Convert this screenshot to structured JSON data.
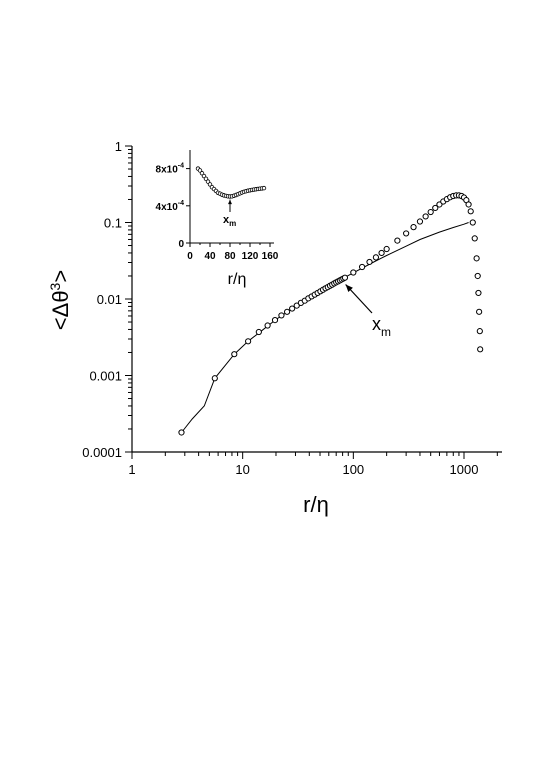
{
  "chart_data": [
    {
      "type": "scatter",
      "xscale": "log",
      "yscale": "log",
      "xlim": [
        1,
        3000
      ],
      "ylim": [
        0.0001,
        1
      ],
      "xticks": [
        "1",
        "10",
        "100",
        "1000"
      ],
      "yticks": [
        "0.0001",
        "0.001",
        "0.01",
        "0.1",
        "1"
      ],
      "xlabel_base": "r/",
      "xlabel_sym": "η",
      "ylabel_pre": "<Δθ",
      "ylabel_sup": "3",
      "ylabel_post": ">",
      "annotation": {
        "base": "x",
        "sub": "m",
        "points_to_x": 80,
        "points_to_y": 0.018
      },
      "points": [
        [
          2.8,
          0.00018
        ],
        [
          5.6,
          0.00092
        ],
        [
          8.4,
          0.0019
        ],
        [
          11.2,
          0.0028
        ],
        [
          14,
          0.0037
        ],
        [
          16.8,
          0.0045
        ],
        [
          19.6,
          0.0053
        ],
        [
          22.4,
          0.0061
        ],
        [
          25.2,
          0.0068
        ],
        [
          28,
          0.0075
        ],
        [
          30.8,
          0.0082
        ],
        [
          33.6,
          0.0089
        ],
        [
          36.4,
          0.0095
        ],
        [
          39.2,
          0.0102
        ],
        [
          42,
          0.0108
        ],
        [
          44.8,
          0.0114
        ],
        [
          47.6,
          0.012
        ],
        [
          50.4,
          0.0126
        ],
        [
          53.2,
          0.0132
        ],
        [
          56,
          0.0138
        ],
        [
          58.8,
          0.0143
        ],
        [
          61.6,
          0.0149
        ],
        [
          64.4,
          0.0154
        ],
        [
          67.2,
          0.016
        ],
        [
          70,
          0.0165
        ],
        [
          72.8,
          0.017
        ],
        [
          75.6,
          0.0175
        ],
        [
          78.4,
          0.018
        ],
        [
          81.2,
          0.0185
        ],
        [
          84,
          0.019
        ],
        [
          100,
          0.0222
        ],
        [
          120,
          0.0262
        ],
        [
          140,
          0.0305
        ],
        [
          160,
          0.035
        ],
        [
          180,
          0.04
        ],
        [
          200,
          0.045
        ],
        [
          250,
          0.058
        ],
        [
          300,
          0.072
        ],
        [
          350,
          0.087
        ],
        [
          400,
          0.103
        ],
        [
          450,
          0.12
        ],
        [
          500,
          0.137
        ],
        [
          550,
          0.155
        ],
        [
          600,
          0.172
        ],
        [
          650,
          0.188
        ],
        [
          700,
          0.202
        ],
        [
          750,
          0.214
        ],
        [
          800,
          0.222
        ],
        [
          850,
          0.226
        ],
        [
          900,
          0.226
        ],
        [
          950,
          0.222
        ],
        [
          1000,
          0.212
        ],
        [
          1050,
          0.196
        ],
        [
          1100,
          0.172
        ],
        [
          1150,
          0.14
        ],
        [
          1200,
          0.1
        ],
        [
          1250,
          0.062
        ],
        [
          1300,
          0.034
        ],
        [
          1330,
          0.02
        ],
        [
          1350,
          0.012
        ],
        [
          1370,
          0.0068
        ],
        [
          1390,
          0.0038
        ],
        [
          1400,
          0.0022
        ]
      ],
      "fit_line": [
        [
          2.8,
          0.00018
        ],
        [
          3.5,
          0.00027
        ],
        [
          4.5,
          0.0004
        ],
        [
          5.6,
          0.00092
        ],
        [
          8.4,
          0.0019
        ],
        [
          11.2,
          0.0028
        ],
        [
          15,
          0.0039
        ],
        [
          20,
          0.0054
        ],
        [
          30,
          0.008
        ],
        [
          40,
          0.0104
        ],
        [
          60,
          0.0148
        ],
        [
          80,
          0.0185
        ],
        [
          100,
          0.022
        ],
        [
          150,
          0.03
        ],
        [
          200,
          0.037
        ],
        [
          300,
          0.049
        ],
        [
          400,
          0.06
        ],
        [
          600,
          0.075
        ],
        [
          800,
          0.086
        ],
        [
          1000,
          0.095
        ],
        [
          1100,
          0.1
        ]
      ]
    },
    {
      "type": "scatter",
      "xlim": [
        0,
        160
      ],
      "ylim": [
        0,
        0.001
      ],
      "xticks": [
        "0",
        "40",
        "80",
        "120",
        "160"
      ],
      "ytick_values": [
        0,
        0.0004,
        0.0008
      ],
      "ytick_labels": [
        {
          "text": "0",
          "exp": ""
        },
        {
          "text": "4x10",
          "exp": "-4"
        },
        {
          "text": "8x10",
          "exp": "-4"
        }
      ],
      "xlabel_base": "r/",
      "xlabel_sym": "η",
      "annotation": {
        "base": "x",
        "sub": "m",
        "points_to_x": 80,
        "points_to_y": 0.00051
      },
      "points": [
        [
          16,
          0.0008
        ],
        [
          20,
          0.00078
        ],
        [
          24,
          0.00075
        ],
        [
          28,
          0.00072
        ],
        [
          32,
          0.00069
        ],
        [
          36,
          0.00066
        ],
        [
          40,
          0.00063
        ],
        [
          44,
          0.0006
        ],
        [
          48,
          0.00058
        ],
        [
          52,
          0.00056
        ],
        [
          56,
          0.00054
        ],
        [
          60,
          0.00053
        ],
        [
          64,
          0.00052
        ],
        [
          68,
          0.000512
        ],
        [
          72,
          0.000506
        ],
        [
          76,
          0.000502
        ],
        [
          80,
          0.0005
        ],
        [
          84,
          0.000502
        ],
        [
          88,
          0.000508
        ],
        [
          92,
          0.000516
        ],
        [
          96,
          0.000525
        ],
        [
          100,
          0.000534
        ],
        [
          104,
          0.000543
        ],
        [
          108,
          0.00055
        ],
        [
          112,
          0.000557
        ],
        [
          116,
          0.000562
        ],
        [
          120,
          0.000567
        ],
        [
          124,
          0.000571
        ],
        [
          128,
          0.000575
        ],
        [
          132,
          0.000578
        ],
        [
          136,
          0.000581
        ],
        [
          140,
          0.000584
        ],
        [
          144,
          0.000587
        ],
        [
          148,
          0.00059
        ]
      ]
    }
  ]
}
